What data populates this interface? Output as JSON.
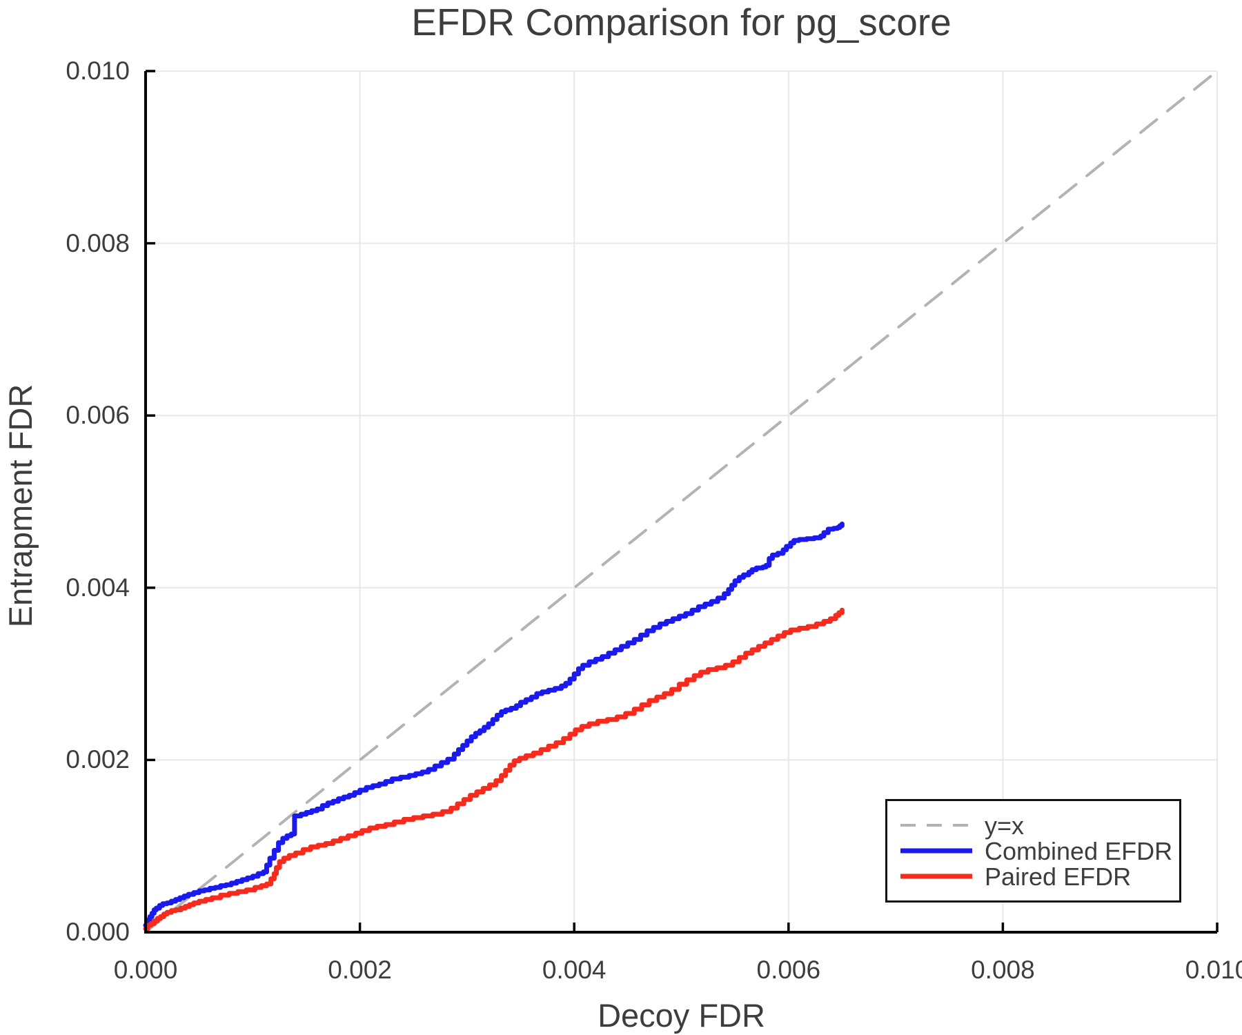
{
  "chart_data": {
    "type": "line",
    "title": "EFDR Comparison for pg_score",
    "xlabel": "Decoy FDR",
    "ylabel": "Entrapment FDR",
    "xlim": [
      0.0,
      0.01
    ],
    "ylim": [
      0.0,
      0.01
    ],
    "x_ticks": [
      "0.000",
      "0.002",
      "0.004",
      "0.006",
      "0.008",
      "0.010"
    ],
    "y_ticks": [
      "0.000",
      "0.002",
      "0.004",
      "0.006",
      "0.008",
      "0.010"
    ],
    "grid": true,
    "grid_color": "#e8e8e8",
    "axis_color": "#000000",
    "text_color": "#3d3d3d",
    "legend_position": "lower right",
    "series": [
      {
        "name": "y=x",
        "style": "dashed",
        "step": false,
        "color": "#b3b3b3",
        "width": 4,
        "points": [
          [
            0.0,
            0.0
          ],
          [
            0.01,
            0.01
          ]
        ]
      },
      {
        "name": "Combined EFDR",
        "style": "solid",
        "step": true,
        "color": "#1a1aee",
        "width": 7,
        "points": [
          [
            0.0,
            8e-05
          ],
          [
            2e-05,
            0.00014
          ],
          [
            4e-05,
            0.00018
          ],
          [
            6e-05,
            0.00022
          ],
          [
            8e-05,
            0.00026
          ],
          [
            0.0001,
            0.00028
          ],
          [
            0.00013,
            0.00031
          ],
          [
            0.00016,
            0.00033
          ],
          [
            0.0002,
            0.00034
          ],
          [
            0.00024,
            0.00036
          ],
          [
            0.00028,
            0.00038
          ],
          [
            0.00032,
            0.0004
          ],
          [
            0.00036,
            0.00042
          ],
          [
            0.0004,
            0.00044
          ],
          [
            0.00045,
            0.00046
          ],
          [
            0.0005,
            0.00048
          ],
          [
            0.00055,
            0.00049
          ],
          [
            0.0006,
            0.00051
          ],
          [
            0.00065,
            0.00052
          ],
          [
            0.0007,
            0.00054
          ],
          [
            0.00075,
            0.00055
          ],
          [
            0.0008,
            0.00057
          ],
          [
            0.00085,
            0.00059
          ],
          [
            0.0009,
            0.00061
          ],
          [
            0.00095,
            0.00063
          ],
          [
            0.001,
            0.00065
          ],
          [
            0.00105,
            0.00068
          ],
          [
            0.0011,
            0.0007
          ],
          [
            0.00113,
            0.00078
          ],
          [
            0.00116,
            0.00086
          ],
          [
            0.0012,
            0.00095
          ],
          [
            0.00124,
            0.00104
          ],
          [
            0.00128,
            0.00109
          ],
          [
            0.00132,
            0.00112
          ],
          [
            0.00136,
            0.00114
          ],
          [
            0.00139,
            0.00135
          ],
          [
            0.00145,
            0.00137
          ],
          [
            0.0015,
            0.00139
          ],
          [
            0.00155,
            0.00141
          ],
          [
            0.0016,
            0.00143
          ],
          [
            0.00165,
            0.00147
          ],
          [
            0.0017,
            0.0015
          ],
          [
            0.00175,
            0.00152
          ],
          [
            0.0018,
            0.00155
          ],
          [
            0.00185,
            0.00157
          ],
          [
            0.0019,
            0.00159
          ],
          [
            0.00195,
            0.00162
          ],
          [
            0.002,
            0.00165
          ],
          [
            0.00206,
            0.00168
          ],
          [
            0.00212,
            0.0017
          ],
          [
            0.00218,
            0.00172
          ],
          [
            0.00224,
            0.00175
          ],
          [
            0.0023,
            0.00178
          ],
          [
            0.00238,
            0.0018
          ],
          [
            0.00246,
            0.00182
          ],
          [
            0.00252,
            0.00184
          ],
          [
            0.00258,
            0.00186
          ],
          [
            0.00264,
            0.00189
          ],
          [
            0.0027,
            0.00193
          ],
          [
            0.00276,
            0.00197
          ],
          [
            0.00282,
            0.00201
          ],
          [
            0.00288,
            0.00207
          ],
          [
            0.00292,
            0.00212
          ],
          [
            0.00296,
            0.00217
          ],
          [
            0.003,
            0.00222
          ],
          [
            0.00304,
            0.00227
          ],
          [
            0.00308,
            0.00231
          ],
          [
            0.00312,
            0.00234
          ],
          [
            0.00316,
            0.00238
          ],
          [
            0.0032,
            0.00242
          ],
          [
            0.00324,
            0.00247
          ],
          [
            0.00328,
            0.00252
          ],
          [
            0.00332,
            0.00256
          ],
          [
            0.00336,
            0.00258
          ],
          [
            0.00341,
            0.0026
          ],
          [
            0.00346,
            0.00263
          ],
          [
            0.0035,
            0.00267
          ],
          [
            0.00355,
            0.0027
          ],
          [
            0.0036,
            0.00273
          ],
          [
            0.00365,
            0.00277
          ],
          [
            0.0037,
            0.00279
          ],
          [
            0.00376,
            0.00281
          ],
          [
            0.00382,
            0.00283
          ],
          [
            0.00388,
            0.00286
          ],
          [
            0.00392,
            0.00289
          ],
          [
            0.00396,
            0.00294
          ],
          [
            0.004,
            0.003
          ],
          [
            0.00404,
            0.00306
          ],
          [
            0.00408,
            0.0031
          ],
          [
            0.00414,
            0.00314
          ],
          [
            0.0042,
            0.00317
          ],
          [
            0.00426,
            0.0032
          ],
          [
            0.00432,
            0.00324
          ],
          [
            0.00438,
            0.00328
          ],
          [
            0.00444,
            0.00332
          ],
          [
            0.0045,
            0.00336
          ],
          [
            0.00456,
            0.0034
          ],
          [
            0.00462,
            0.00345
          ],
          [
            0.00468,
            0.0035
          ],
          [
            0.00474,
            0.00354
          ],
          [
            0.0048,
            0.00358
          ],
          [
            0.00486,
            0.00361
          ],
          [
            0.00492,
            0.00364
          ],
          [
            0.00498,
            0.00367
          ],
          [
            0.00504,
            0.0037
          ],
          [
            0.0051,
            0.00374
          ],
          [
            0.00516,
            0.00378
          ],
          [
            0.00522,
            0.00381
          ],
          [
            0.00528,
            0.00384
          ],
          [
            0.00534,
            0.00388
          ],
          [
            0.0054,
            0.00393
          ],
          [
            0.00544,
            0.00398
          ],
          [
            0.00547,
            0.00403
          ],
          [
            0.0055,
            0.00408
          ],
          [
            0.00554,
            0.00412
          ],
          [
            0.00558,
            0.00415
          ],
          [
            0.00563,
            0.00418
          ],
          [
            0.00566,
            0.00421
          ],
          [
            0.0057,
            0.00423
          ],
          [
            0.00576,
            0.00424
          ],
          [
            0.00579,
            0.00426
          ],
          [
            0.00582,
            0.00434
          ],
          [
            0.00585,
            0.00438
          ],
          [
            0.0059,
            0.0044
          ],
          [
            0.00595,
            0.00444
          ],
          [
            0.00598,
            0.00448
          ],
          [
            0.00602,
            0.00452
          ],
          [
            0.00605,
            0.00455
          ],
          [
            0.0061,
            0.00456
          ],
          [
            0.00617,
            0.00457
          ],
          [
            0.00624,
            0.00458
          ],
          [
            0.0063,
            0.0046
          ],
          [
            0.00633,
            0.00464
          ],
          [
            0.00637,
            0.00468
          ],
          [
            0.00642,
            0.00469
          ],
          [
            0.00646,
            0.0047
          ],
          [
            0.00648,
            0.00472
          ],
          [
            0.0065,
            0.00474
          ]
        ]
      },
      {
        "name": "Paired EFDR",
        "style": "solid",
        "step": true,
        "color": "#f62b1e",
        "width": 7,
        "points": [
          [
            0.0,
            4e-05
          ],
          [
            2e-05,
            8e-05
          ],
          [
            5e-05,
            0.0001
          ],
          [
            8e-05,
            0.00013
          ],
          [
            0.00011,
            0.00016
          ],
          [
            0.00014,
            0.00018
          ],
          [
            0.00017,
            0.00021
          ],
          [
            0.0002,
            0.00023
          ],
          [
            0.00024,
            0.00025
          ],
          [
            0.00028,
            0.00026
          ],
          [
            0.00033,
            0.00028
          ],
          [
            0.00037,
            0.0003
          ],
          [
            0.00041,
            0.00032
          ],
          [
            0.00045,
            0.00034
          ],
          [
            0.0005,
            0.00036
          ],
          [
            0.00056,
            0.00038
          ],
          [
            0.00062,
            0.0004
          ],
          [
            0.0007,
            0.00043
          ],
          [
            0.00078,
            0.00045
          ],
          [
            0.00086,
            0.00047
          ],
          [
            0.00094,
            0.00049
          ],
          [
            0.00102,
            0.00052
          ],
          [
            0.00108,
            0.00054
          ],
          [
            0.00113,
            0.00056
          ],
          [
            0.00117,
            0.00062
          ],
          [
            0.0012,
            0.00068
          ],
          [
            0.00122,
            0.00075
          ],
          [
            0.00125,
            0.00082
          ],
          [
            0.00129,
            0.00086
          ],
          [
            0.00134,
            0.00089
          ],
          [
            0.0014,
            0.00092
          ],
          [
            0.00147,
            0.00096
          ],
          [
            0.00154,
            0.00099
          ],
          [
            0.00161,
            0.00101
          ],
          [
            0.00168,
            0.00103
          ],
          [
            0.00175,
            0.00106
          ],
          [
            0.00182,
            0.00109
          ],
          [
            0.00189,
            0.00112
          ],
          [
            0.00196,
            0.00115
          ],
          [
            0.00202,
            0.00118
          ],
          [
            0.00209,
            0.00121
          ],
          [
            0.00216,
            0.00123
          ],
          [
            0.00224,
            0.00125
          ],
          [
            0.00232,
            0.00128
          ],
          [
            0.00241,
            0.00131
          ],
          [
            0.0025,
            0.00133
          ],
          [
            0.00259,
            0.00135
          ],
          [
            0.00268,
            0.00137
          ],
          [
            0.00277,
            0.0014
          ],
          [
            0.00285,
            0.00144
          ],
          [
            0.00291,
            0.00149
          ],
          [
            0.00297,
            0.00154
          ],
          [
            0.00303,
            0.00159
          ],
          [
            0.00309,
            0.00163
          ],
          [
            0.00315,
            0.00167
          ],
          [
            0.00321,
            0.00171
          ],
          [
            0.00327,
            0.00176
          ],
          [
            0.00332,
            0.00182
          ],
          [
            0.00336,
            0.00188
          ],
          [
            0.0034,
            0.00194
          ],
          [
            0.00344,
            0.00199
          ],
          [
            0.00349,
            0.00202
          ],
          [
            0.00355,
            0.00205
          ],
          [
            0.00362,
            0.00208
          ],
          [
            0.00369,
            0.00212
          ],
          [
            0.00376,
            0.00216
          ],
          [
            0.00383,
            0.0022
          ],
          [
            0.0039,
            0.00225
          ],
          [
            0.00396,
            0.0023
          ],
          [
            0.00401,
            0.00235
          ],
          [
            0.00407,
            0.00239
          ],
          [
            0.00414,
            0.00242
          ],
          [
            0.00422,
            0.00245
          ],
          [
            0.00431,
            0.00247
          ],
          [
            0.0044,
            0.0025
          ],
          [
            0.00448,
            0.00254
          ],
          [
            0.00456,
            0.00259
          ],
          [
            0.00463,
            0.00264
          ],
          [
            0.0047,
            0.00269
          ],
          [
            0.00477,
            0.00273
          ],
          [
            0.00484,
            0.00277
          ],
          [
            0.00491,
            0.00282
          ],
          [
            0.00498,
            0.00288
          ],
          [
            0.00505,
            0.00293
          ],
          [
            0.00512,
            0.00298
          ],
          [
            0.00518,
            0.00302
          ],
          [
            0.00525,
            0.00305
          ],
          [
            0.00533,
            0.00307
          ],
          [
            0.00541,
            0.0031
          ],
          [
            0.00548,
            0.00314
          ],
          [
            0.00554,
            0.00319
          ],
          [
            0.0056,
            0.00324
          ],
          [
            0.00566,
            0.00328
          ],
          [
            0.00572,
            0.00332
          ],
          [
            0.00578,
            0.00336
          ],
          [
            0.00584,
            0.0034
          ],
          [
            0.0059,
            0.00344
          ],
          [
            0.00596,
            0.00348
          ],
          [
            0.00602,
            0.00351
          ],
          [
            0.0061,
            0.00353
          ],
          [
            0.00618,
            0.00355
          ],
          [
            0.00626,
            0.00358
          ],
          [
            0.00633,
            0.00361
          ],
          [
            0.00639,
            0.00364
          ],
          [
            0.00644,
            0.00368
          ],
          [
            0.00647,
            0.00371
          ],
          [
            0.0065,
            0.00374
          ]
        ]
      }
    ]
  }
}
